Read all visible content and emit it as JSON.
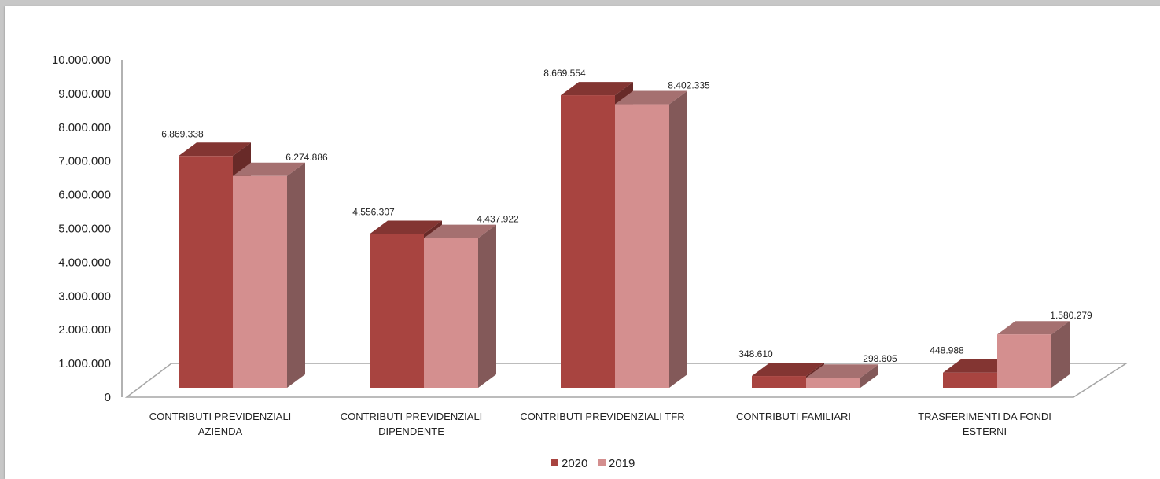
{
  "chart_data": {
    "type": "bar",
    "title": "",
    "xlabel": "",
    "ylabel": "",
    "ylim": [
      0,
      10000000
    ],
    "yticks": [
      "0",
      "1.000.000",
      "2.000.000",
      "3.000.000",
      "4.000.000",
      "5.000.000",
      "6.000.000",
      "7.000.000",
      "8.000.000",
      "9.000.000",
      "10.000.000"
    ],
    "categories": [
      [
        "CONTRIBUTI PREVIDENZIALI",
        "AZIENDA"
      ],
      [
        "CONTRIBUTI PREVIDENZIALI",
        "DIPENDENTE"
      ],
      [
        "CONTRIBUTI PREVIDENZIALI TFR"
      ],
      [
        "CONTRIBUTI FAMILIARI"
      ],
      [
        "TRASFERIMENTI DA FONDI",
        "ESTERNI"
      ]
    ],
    "series": [
      {
        "name": "2020",
        "color": "#a84440",
        "values": [
          6869338,
          4556307,
          8669554,
          348610,
          448988
        ],
        "labels": [
          "6.869.338",
          "4.556.307",
          "8.669.554",
          "348.610",
          "448.988"
        ]
      },
      {
        "name": "2019",
        "color": "#d48f8f",
        "values": [
          6274886,
          4437922,
          8402335,
          298605,
          1580279
        ],
        "labels": [
          "6.274.886",
          "4.437.922",
          "8.402.335",
          "298.605",
          "1.580.279"
        ]
      }
    ],
    "legend_position": "bottom",
    "grid": false,
    "style": "3d-clustered-column"
  }
}
